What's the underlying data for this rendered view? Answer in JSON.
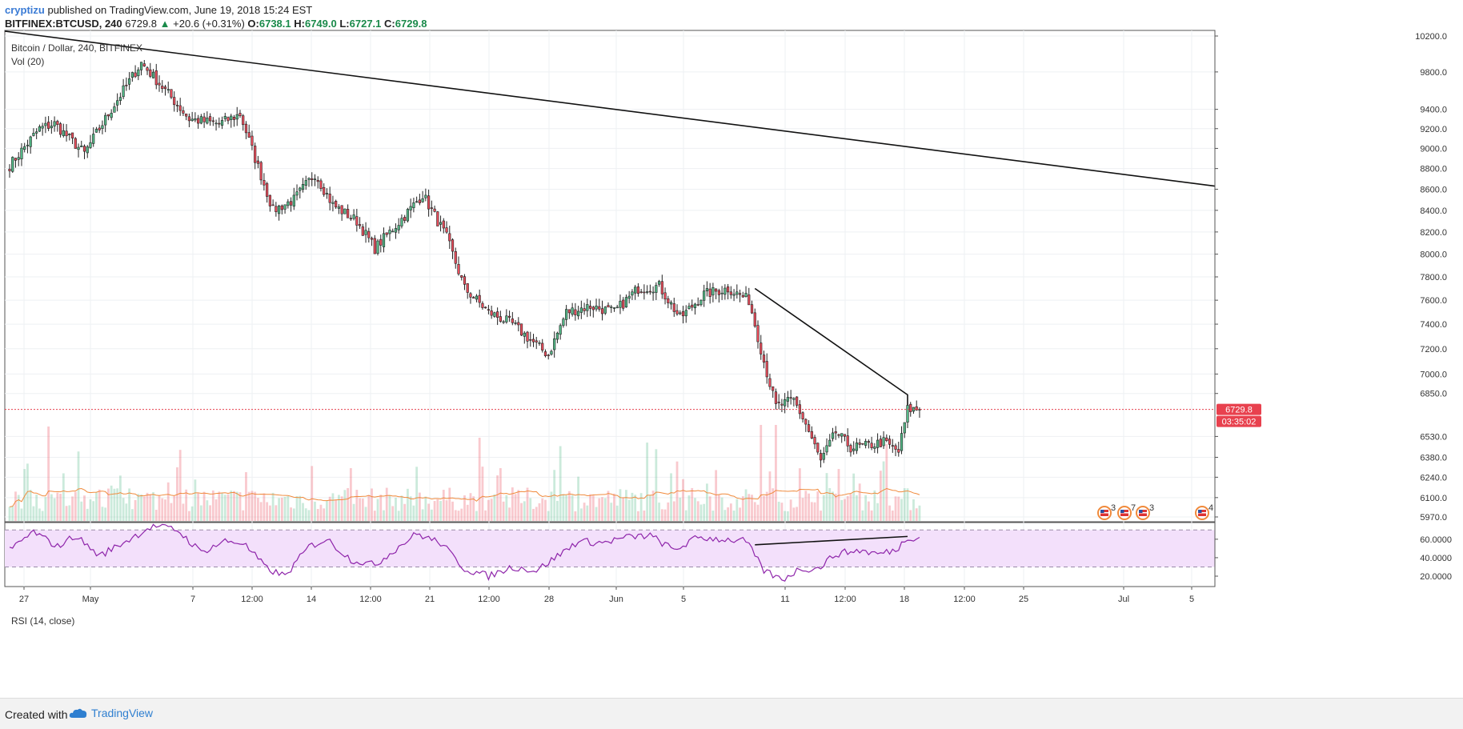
{
  "header": {
    "author": "cryptizu",
    "published": "published on TradingView.com, June 19, 2018 15:24 EST",
    "symbol": "BITFINEX:BTCUSD, 240",
    "last": "6729.8",
    "change_arrow": "▲",
    "change": "+20.6 (+0.31%)",
    "o_label": "O:",
    "o_value": "6738.1",
    "h_label": "H:",
    "h_value": "6749.0",
    "l_label": "L:",
    "l_value": "6727.1",
    "c_label": "C:",
    "c_value": "6729.8"
  },
  "legend": {
    "title": "Bitcoin / Dollar, 240, BITFINEX",
    "volume": "Vol (20)",
    "rsi": "RSI (14, close)"
  },
  "price_tags": {
    "last": "6729.8",
    "countdown": "03:35:02"
  },
  "events": [
    {
      "icon": "us-flag-icon",
      "count": "3"
    },
    {
      "icon": "us-flag-icon",
      "count": "7"
    },
    {
      "icon": "us-flag-icon",
      "count": "3"
    },
    {
      "icon": "us-flag-icon",
      "count": "4"
    }
  ],
  "footer": {
    "created": "Created with",
    "brand": "TradingView"
  },
  "colors": {
    "up": "#53b987",
    "down": "#eb4d5c",
    "volume_ma": "#f08a3c",
    "rsi": "#8e24aa",
    "rsi_band": "#f3e0fb",
    "trendline": "#111111",
    "last_price": "#e8414e"
  },
  "chart_data": [
    {
      "type": "candlestick",
      "title": "Bitcoin / Dollar, 240, BITFINEX",
      "yscale": "log",
      "ylim": [
        5970,
        10200
      ],
      "y_ticks": [
        10200,
        9800,
        9400,
        9200,
        9000,
        8800,
        8600,
        8400,
        8200,
        8000,
        7800,
        7600,
        7400,
        7200,
        7000,
        6850,
        6530,
        6380,
        6240,
        6100,
        5970
      ],
      "y_tick_labels": [
        "10200.0",
        "9800.0",
        "9400.0",
        "9200.0",
        "9000.0",
        "8800.0",
        "8600.0",
        "8400.0",
        "8200.0",
        "8000.0",
        "7800.0",
        "7600.0",
        "7400.0",
        "7200.0",
        "7000.0",
        "6850.0",
        "6530.0",
        "6380.0",
        "6240.0",
        "6100.0",
        "5970.0"
      ],
      "x_ticks": [
        "27",
        "May",
        "7",
        "12:00",
        "14",
        "12:00",
        "21",
        "12:00",
        "28",
        "Jun",
        "5",
        "11",
        "12:00",
        "18",
        "12:00",
        "25",
        "Jul",
        "5"
      ],
      "path_waypoints": [
        {
          "bar": 0,
          "price": 8830
        },
        {
          "bar": 10,
          "price": 9200
        },
        {
          "bar": 15,
          "price": 9250
        },
        {
          "bar": 25,
          "price": 8950
        },
        {
          "bar": 35,
          "price": 9450
        },
        {
          "bar": 44,
          "price": 9900
        },
        {
          "bar": 52,
          "price": 9600
        },
        {
          "bar": 60,
          "price": 9300
        },
        {
          "bar": 70,
          "price": 9250
        },
        {
          "bar": 77,
          "price": 9350
        },
        {
          "bar": 82,
          "price": 8900
        },
        {
          "bar": 88,
          "price": 8400
        },
        {
          "bar": 95,
          "price": 8500
        },
        {
          "bar": 102,
          "price": 8750
        },
        {
          "bar": 108,
          "price": 8450
        },
        {
          "bar": 116,
          "price": 8300
        },
        {
          "bar": 122,
          "price": 8050
        },
        {
          "bar": 132,
          "price": 8350
        },
        {
          "bar": 138,
          "price": 8550
        },
        {
          "bar": 146,
          "price": 8150
        },
        {
          "bar": 152,
          "price": 7700
        },
        {
          "bar": 160,
          "price": 7500
        },
        {
          "bar": 168,
          "price": 7400
        },
        {
          "bar": 175,
          "price": 7250
        },
        {
          "bar": 180,
          "price": 7150
        },
        {
          "bar": 186,
          "price": 7500
        },
        {
          "bar": 194,
          "price": 7550
        },
        {
          "bar": 202,
          "price": 7500
        },
        {
          "bar": 210,
          "price": 7700
        },
        {
          "bar": 217,
          "price": 7720
        },
        {
          "bar": 224,
          "price": 7450
        },
        {
          "bar": 232,
          "price": 7650
        },
        {
          "bar": 240,
          "price": 7700
        },
        {
          "bar": 247,
          "price": 7600
        },
        {
          "bar": 252,
          "price": 7100
        },
        {
          "bar": 256,
          "price": 6750
        },
        {
          "bar": 262,
          "price": 6800
        },
        {
          "bar": 266,
          "price": 6620
        },
        {
          "bar": 271,
          "price": 6350
        },
        {
          "bar": 276,
          "price": 6560
        },
        {
          "bar": 281,
          "price": 6450
        },
        {
          "bar": 286,
          "price": 6460
        },
        {
          "bar": 292,
          "price": 6490
        },
        {
          "bar": 297,
          "price": 6420
        },
        {
          "bar": 300,
          "price": 6730
        },
        {
          "bar": 304,
          "price": 6730
        }
      ],
      "trendlines": [
        {
          "from": {
            "time": "Apr 26",
            "price": 10200
          },
          "to": {
            "time": "Jul 5+",
            "price": 8630
          }
        },
        {
          "from": {
            "time": "Jun 8",
            "price": 7690
          },
          "to": {
            "time": "Jun 18",
            "price": 6830
          }
        }
      ]
    },
    {
      "type": "bar",
      "title": "Vol (20)",
      "description": "volume bars colored by candle direction with orange 20-period moving average"
    },
    {
      "type": "line",
      "title": "RSI (14, close)",
      "ylim": [
        10,
        80
      ],
      "y_ticks": [
        60,
        40,
        20
      ],
      "y_tick_labels": [
        "60.0000",
        "40.0000",
        "20.0000"
      ],
      "bands": [
        30,
        70
      ],
      "waypoints": [
        {
          "bar": 0,
          "value": 48
        },
        {
          "bar": 8,
          "value": 68
        },
        {
          "bar": 16,
          "value": 52
        },
        {
          "bar": 22,
          "value": 64
        },
        {
          "bar": 30,
          "value": 42
        },
        {
          "bar": 40,
          "value": 60
        },
        {
          "bar": 48,
          "value": 75
        },
        {
          "bar": 56,
          "value": 70
        },
        {
          "bar": 64,
          "value": 46
        },
        {
          "bar": 72,
          "value": 58
        },
        {
          "bar": 78,
          "value": 56
        },
        {
          "bar": 86,
          "value": 28
        },
        {
          "bar": 92,
          "value": 20
        },
        {
          "bar": 100,
          "value": 52
        },
        {
          "bar": 106,
          "value": 60
        },
        {
          "bar": 114,
          "value": 38
        },
        {
          "bar": 122,
          "value": 32
        },
        {
          "bar": 130,
          "value": 52
        },
        {
          "bar": 136,
          "value": 66
        },
        {
          "bar": 144,
          "value": 56
        },
        {
          "bar": 152,
          "value": 28
        },
        {
          "bar": 160,
          "value": 20
        },
        {
          "bar": 168,
          "value": 30
        },
        {
          "bar": 176,
          "value": 26
        },
        {
          "bar": 184,
          "value": 44
        },
        {
          "bar": 190,
          "value": 58
        },
        {
          "bar": 198,
          "value": 56
        },
        {
          "bar": 206,
          "value": 62
        },
        {
          "bar": 214,
          "value": 64
        },
        {
          "bar": 222,
          "value": 48
        },
        {
          "bar": 230,
          "value": 62
        },
        {
          "bar": 238,
          "value": 60
        },
        {
          "bar": 246,
          "value": 58
        },
        {
          "bar": 252,
          "value": 26
        },
        {
          "bar": 258,
          "value": 16
        },
        {
          "bar": 264,
          "value": 28
        },
        {
          "bar": 270,
          "value": 28
        },
        {
          "bar": 276,
          "value": 44
        },
        {
          "bar": 284,
          "value": 48
        },
        {
          "bar": 290,
          "value": 44
        },
        {
          "bar": 296,
          "value": 48
        },
        {
          "bar": 300,
          "value": 62
        },
        {
          "bar": 304,
          "value": 62
        }
      ],
      "trendline": {
        "from": {
          "time": "Jun 8",
          "value": 54
        },
        "to": {
          "time": "Jun 18",
          "value": 64
        }
      }
    }
  ]
}
